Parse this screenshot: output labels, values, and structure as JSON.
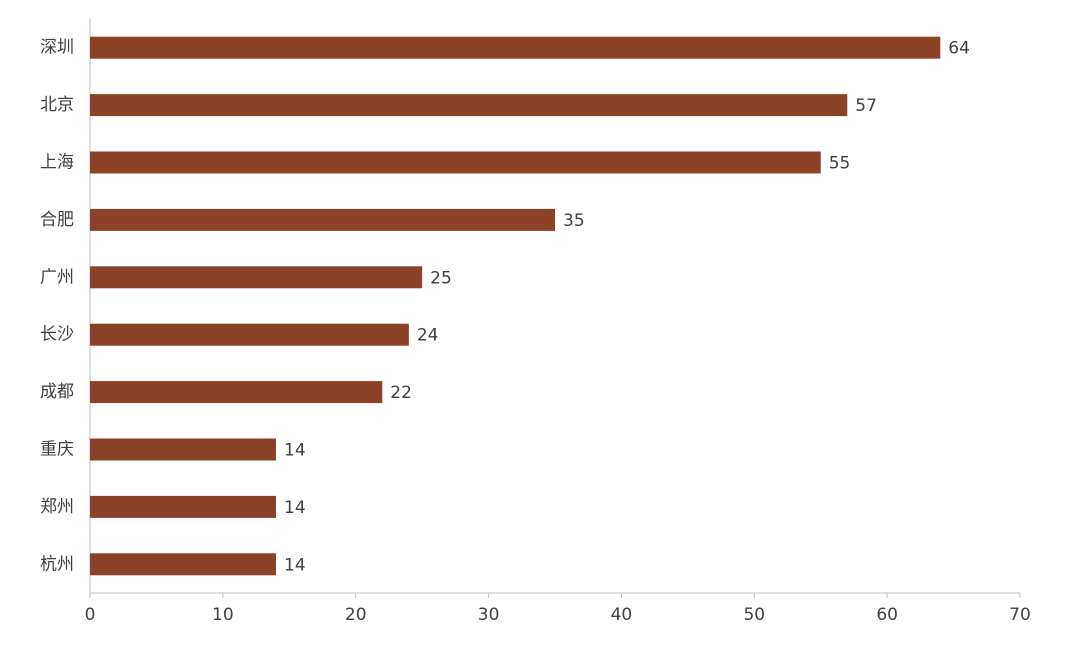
{
  "chart_data": {
    "type": "bar",
    "categories": [
      "深圳",
      "北京",
      "上海",
      "合肥",
      "广州",
      "长沙",
      "成都",
      "重庆",
      "郑州",
      "杭州"
    ],
    "values": [
      64,
      57,
      55,
      35,
      25,
      24,
      22,
      14,
      14,
      14
    ],
    "color": "#8b4226",
    "xlim": [
      0,
      70
    ],
    "xticks": [
      0,
      10,
      20,
      30,
      40,
      50,
      60,
      70
    ]
  }
}
